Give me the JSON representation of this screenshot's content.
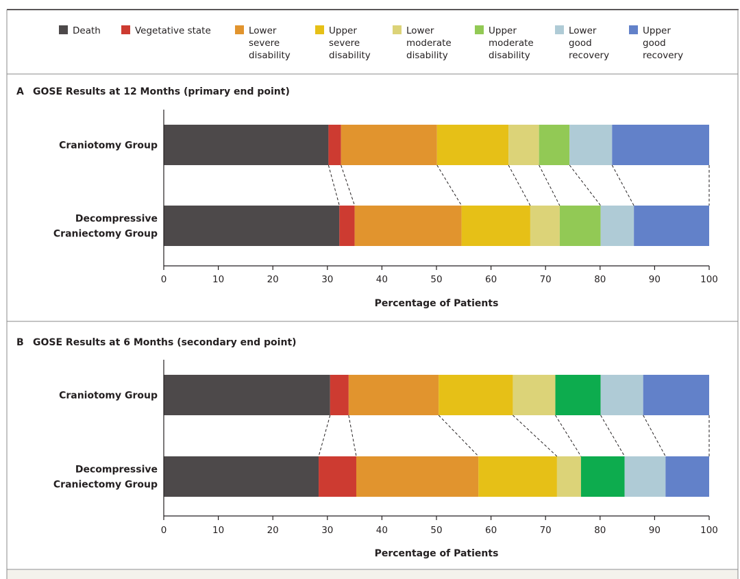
{
  "legend": [
    {
      "key": "death",
      "lines": [
        "Death"
      ],
      "color": "#4d494a"
    },
    {
      "key": "vegetative",
      "lines": [
        "Vegetative state"
      ],
      "color": "#cd3b31"
    },
    {
      "key": "lower_severe",
      "lines": [
        "Lower",
        "severe",
        "disability"
      ],
      "color": "#e1942e"
    },
    {
      "key": "upper_severe",
      "lines": [
        "Upper",
        "severe",
        "disability"
      ],
      "color": "#e6c017"
    },
    {
      "key": "lower_moderate",
      "lines": [
        "Lower",
        "moderate",
        "disability"
      ],
      "color": "#dcd378"
    },
    {
      "key": "upper_moderate",
      "lines": [
        "Upper",
        "moderate",
        "disability"
      ],
      "color": "#92c955"
    },
    {
      "key": "lower_good",
      "lines": [
        "Lower",
        "good",
        "recovery"
      ],
      "color": "#afcbd6"
    },
    {
      "key": "upper_good",
      "lines": [
        "Upper",
        "good",
        "recovery"
      ],
      "color": "#6281c9"
    }
  ],
  "chart_data": [
    {
      "type": "bar",
      "orientation": "horizontal",
      "stacked": true,
      "panel_letter": "A",
      "title": "GOSE Results at 12 Months (primary end point)",
      "categories": [
        "Craniotomy Group",
        "Decompressive Craniectomy Group"
      ],
      "category_lines": [
        [
          "Craniotomy Group"
        ],
        [
          "Decompressive",
          "Craniectomy Group"
        ]
      ],
      "series": [
        {
          "name": "Death",
          "color": "#4d494a",
          "values": [
            30.2,
            32.2
          ]
        },
        {
          "name": "Vegetative state",
          "color": "#cd3b31",
          "values": [
            2.3,
            2.8
          ]
        },
        {
          "name": "Lower severe disability",
          "color": "#e1942e",
          "values": [
            17.6,
            19.6
          ]
        },
        {
          "name": "Upper severe disability",
          "color": "#e6c017",
          "values": [
            13.1,
            12.6
          ]
        },
        {
          "name": "Lower moderate disability",
          "color": "#dcd378",
          "values": [
            5.6,
            5.4
          ]
        },
        {
          "name": "Upper moderate disability",
          "color": "#92c955",
          "values": [
            5.6,
            7.5
          ]
        },
        {
          "name": "Lower good recovery",
          "color": "#afcbd6",
          "values": [
            7.8,
            6.1
          ]
        },
        {
          "name": "Upper good recovery",
          "color": "#6281c9",
          "values": [
            17.8,
            13.8
          ]
        }
      ],
      "xlabel": "Percentage of Patients",
      "xlim": [
        0,
        100
      ],
      "xticks": [
        0,
        10,
        20,
        30,
        40,
        50,
        60,
        70,
        80,
        90,
        100
      ]
    },
    {
      "type": "bar",
      "orientation": "horizontal",
      "stacked": true,
      "panel_letter": "B",
      "title": "GOSE Results at 6 Months (secondary end point)",
      "categories": [
        "Craniotomy Group",
        "Decompressive Craniectomy Group"
      ],
      "category_lines": [
        [
          "Craniotomy Group"
        ],
        [
          "Decompressive",
          "Craniectomy Group"
        ]
      ],
      "series": [
        {
          "name": "Death",
          "color": "#4d494a",
          "values": [
            30.5,
            28.4
          ]
        },
        {
          "name": "Vegetative state",
          "color": "#cd3b31",
          "values": [
            3.4,
            6.9
          ]
        },
        {
          "name": "Lower severe disability",
          "color": "#e1942e",
          "values": [
            16.5,
            22.4
          ]
        },
        {
          "name": "Upper severe disability",
          "color": "#e6c017",
          "values": [
            13.6,
            14.4
          ]
        },
        {
          "name": "Lower moderate disability",
          "color": "#dcd378",
          "values": [
            7.8,
            4.4
          ]
        },
        {
          "name": "Upper moderate disability",
          "color": "#0dac4e",
          "values": [
            8.3,
            8.0
          ]
        },
        {
          "name": "Lower good recovery",
          "color": "#afcbd6",
          "values": [
            7.8,
            7.5
          ]
        },
        {
          "name": "Upper good recovery",
          "color": "#6281c9",
          "values": [
            12.1,
            8.0
          ]
        }
      ],
      "xlabel": "Percentage of Patients",
      "xlim": [
        0,
        100
      ],
      "xticks": [
        0,
        10,
        20,
        30,
        40,
        50,
        60,
        70,
        80,
        90,
        100
      ]
    }
  ]
}
